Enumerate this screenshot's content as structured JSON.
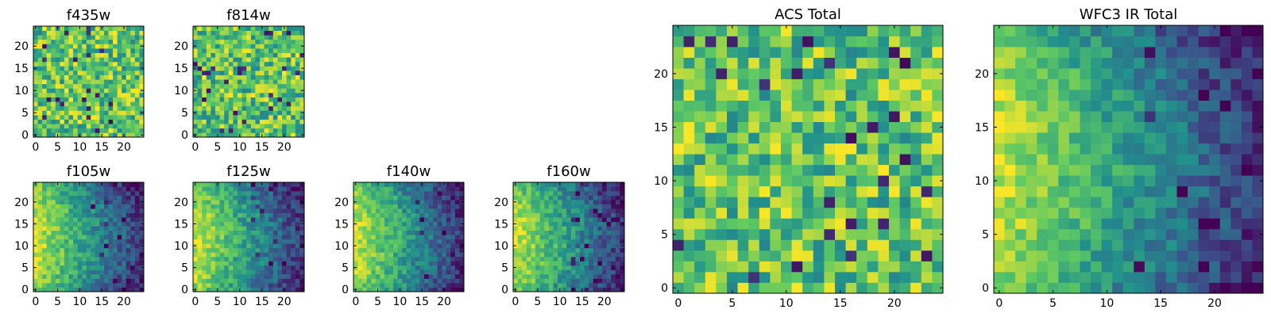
{
  "chart_data": [
    {
      "type": "heatmap",
      "title": "f435w",
      "pattern": "noise",
      "seed": 11,
      "xticks": [
        0,
        5,
        10,
        15,
        20
      ],
      "yticks": [
        0,
        5,
        10,
        15,
        20
      ],
      "grid_size": 25
    },
    {
      "type": "heatmap",
      "title": "f814w",
      "pattern": "noise",
      "seed": 23,
      "xticks": [
        0,
        5,
        10,
        15,
        20
      ],
      "yticks": [
        0,
        5,
        10,
        15,
        20
      ],
      "grid_size": 25
    },
    {
      "type": "heatmap",
      "title": "f105w",
      "pattern": "gradient",
      "seed": 37,
      "xticks": [
        0,
        5,
        10,
        15,
        20
      ],
      "yticks": [
        0,
        5,
        10,
        15,
        20
      ],
      "grid_size": 25
    },
    {
      "type": "heatmap",
      "title": "f125w",
      "pattern": "gradient",
      "seed": 41,
      "xticks": [
        0,
        5,
        10,
        15,
        20
      ],
      "yticks": [
        0,
        5,
        10,
        15,
        20
      ],
      "grid_size": 25
    },
    {
      "type": "heatmap",
      "title": "f140w",
      "pattern": "gradient",
      "seed": 53,
      "xticks": [
        0,
        5,
        10,
        15,
        20
      ],
      "yticks": [
        0,
        5,
        10,
        15,
        20
      ],
      "grid_size": 25
    },
    {
      "type": "heatmap",
      "title": "f160w",
      "pattern": "gradient",
      "seed": 67,
      "xticks": [
        0,
        5,
        10,
        15,
        20
      ],
      "yticks": [
        0,
        5,
        10,
        15,
        20
      ],
      "grid_size": 25
    },
    {
      "type": "heatmap",
      "title": "ACS Total",
      "pattern": "noise",
      "seed": 71,
      "xticks": [
        0,
        5,
        10,
        15,
        20
      ],
      "yticks": [
        0,
        5,
        10,
        15,
        20
      ],
      "grid_size": 25
    },
    {
      "type": "heatmap",
      "title": "WFC3 IR Total",
      "pattern": "gradient",
      "seed": 83,
      "xticks": [
        0,
        5,
        10,
        15,
        20
      ],
      "yticks": [
        0,
        5,
        10,
        15,
        20
      ],
      "grid_size": 25
    }
  ],
  "colormap": [
    "#440154",
    "#3b528b",
    "#21918c",
    "#5ec962",
    "#fde725"
  ]
}
